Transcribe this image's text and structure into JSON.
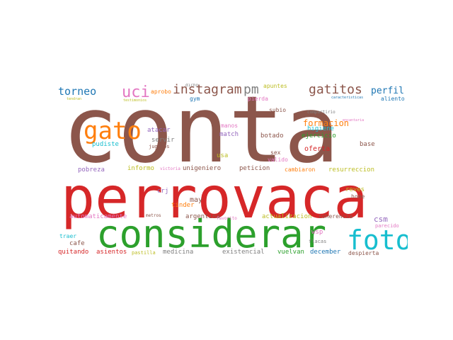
{
  "palette": {
    "brown": "#8c564b",
    "red": "#d62728",
    "green": "#2ca02c",
    "cyan": "#17becf",
    "orange": "#ff7f0e",
    "purple": "#9467bd",
    "pink": "#e377c2",
    "gray": "#7f7f7f",
    "olive": "#bcbd22",
    "blue": "#1f77b4"
  },
  "words": [
    {
      "text": "conta",
      "color": "brown",
      "weight": 1.0
    },
    {
      "text": "perrovaca",
      "color": "red",
      "weight": 0.62
    },
    {
      "text": "considerar",
      "color": "green",
      "weight": 0.42
    },
    {
      "text": "foto",
      "color": "cyan",
      "weight": 0.28
    },
    {
      "text": "gato",
      "color": "orange",
      "weight": 0.25
    },
    {
      "text": "uci",
      "color": "pink",
      "weight": 0.17
    },
    {
      "text": "instagram",
      "color": "brown",
      "weight": 0.15
    },
    {
      "text": "pm",
      "color": "gray",
      "weight": 0.15
    },
    {
      "text": "gatitos",
      "color": "brown",
      "weight": 0.15
    },
    {
      "text": "torneo",
      "color": "blue",
      "weight": 0.12
    },
    {
      "text": "perfil",
      "color": "blue",
      "weight": 0.1
    },
    {
      "text": "aliento",
      "color": "blue",
      "weight": 0.06
    },
    {
      "text": "apuntes",
      "color": "olive",
      "weight": 0.06
    },
    {
      "text": "aprobo",
      "color": "orange",
      "weight": 0.06
    },
    {
      "text": "gym",
      "color": "blue",
      "weight": 0.06
    },
    {
      "text": "manos",
      "color": "pink",
      "weight": 0.06
    },
    {
      "text": "pierda",
      "color": "pink",
      "weight": 0.06
    },
    {
      "text": "subio",
      "color": "brown",
      "weight": 0.06
    },
    {
      "text": "formacion",
      "color": "orange",
      "weight": 0.09
    },
    {
      "text": "higiene",
      "color": "cyan",
      "weight": 0.07
    },
    {
      "text": "ejercicio",
      "color": "green",
      "weight": 0.07
    },
    {
      "text": "atacar",
      "color": "purple",
      "weight": 0.07
    },
    {
      "text": "match",
      "color": "purple",
      "weight": 0.07
    },
    {
      "text": "botado",
      "color": "brown",
      "weight": 0.07
    },
    {
      "text": "oferta",
      "color": "red",
      "weight": 0.08
    },
    {
      "text": "pudiste",
      "color": "cyan",
      "weight": 0.07
    },
    {
      "text": "servir",
      "color": "gray",
      "weight": 0.07
    },
    {
      "text": "jugamos",
      "color": "brown",
      "weight": 0.05
    },
    {
      "text": "base",
      "color": "brown",
      "weight": 0.07
    },
    {
      "text": "usa",
      "color": "olive",
      "weight": 0.07
    },
    {
      "text": "sex",
      "color": "brown",
      "weight": 0.06
    },
    {
      "text": "valido",
      "color": "pink",
      "weight": 0.06
    },
    {
      "text": "pobreza",
      "color": "purple",
      "weight": 0.07
    },
    {
      "text": "informo",
      "color": "olive",
      "weight": 0.07
    },
    {
      "text": "victoria",
      "color": "pink",
      "weight": 0.04
    },
    {
      "text": "unigeniero",
      "color": "brown",
      "weight": 0.07
    },
    {
      "text": "peticion",
      "color": "brown",
      "weight": 0.07
    },
    {
      "text": "cambiaron",
      "color": "orange",
      "weight": 0.07
    },
    {
      "text": "resurreccion",
      "color": "olive",
      "weight": 0.07
    },
    {
      "text": "crj",
      "color": "purple",
      "weight": 0.07
    },
    {
      "text": "may",
      "color": "brown",
      "weight": 0.08
    },
    {
      "text": "tinder",
      "color": "orange",
      "weight": 0.07
    },
    {
      "text": "argentina",
      "color": "brown",
      "weight": 0.07
    },
    {
      "text": "reves",
      "color": "olive",
      "weight": 0.07
    },
    {
      "text": "home",
      "color": "brown",
      "weight": 0.06
    },
    {
      "text": "automaticamente",
      "color": "pink",
      "weight": 0.07
    },
    {
      "text": "actualizacion",
      "color": "olive",
      "weight": 0.07
    },
    {
      "text": "coherencia",
      "color": "brown",
      "weight": 0.06
    },
    {
      "text": "csm",
      "color": "purple",
      "weight": 0.09
    },
    {
      "text": "parecido",
      "color": "pink",
      "weight": 0.05
    },
    {
      "text": "traer",
      "color": "cyan",
      "weight": 0.05
    },
    {
      "text": "cafe",
      "color": "brown",
      "weight": 0.07
    },
    {
      "text": "wsp",
      "color": "pink",
      "weight": 0.07
    },
    {
      "text": "flacas",
      "color": "gray",
      "weight": 0.05
    },
    {
      "text": "quitando",
      "color": "red",
      "weight": 0.07
    },
    {
      "text": "asientos",
      "color": "red",
      "weight": 0.07
    },
    {
      "text": "pastilla",
      "color": "olive",
      "weight": 0.05
    },
    {
      "text": "medicina",
      "color": "gray",
      "weight": 0.07
    },
    {
      "text": "existencial",
      "color": "gray",
      "weight": 0.07
    },
    {
      "text": "vuelvan",
      "color": "green",
      "weight": 0.07
    },
    {
      "text": "december",
      "color": "blue",
      "weight": 0.07
    },
    {
      "text": "despierta",
      "color": "brown",
      "weight": 0.06
    },
    {
      "text": "metros",
      "color": "brown",
      "weight": 0.04
    },
    {
      "text": "favorito",
      "color": "pink",
      "weight": 0.04
    },
    {
      "text": "compartirio",
      "color": "gray",
      "weight": 0.04
    },
    {
      "text": "dicho",
      "color": "gray",
      "weight": 0.04
    },
    {
      "text": "encantaria",
      "color": "pink",
      "weight": 0.03
    },
    {
      "text": "testimonios",
      "color": "olive",
      "weight": 0.03
    },
    {
      "text": "tendran",
      "color": "olive",
      "weight": 0.03
    },
    {
      "text": "caracteristicas",
      "color": "blue",
      "weight": 0.03
    }
  ]
}
